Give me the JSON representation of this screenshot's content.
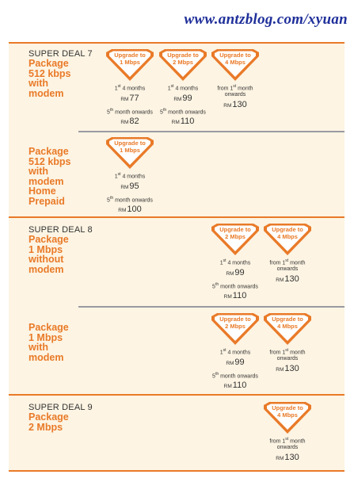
{
  "watermark": "www.antzblog.com/xyuan",
  "colors": {
    "accent": "#e97a28",
    "background": "#fdf4e3",
    "text": "#333333",
    "watermark": "#1f2f9a"
  },
  "icons": {
    "badge": "diamond-badge-icon"
  },
  "currency": "RM",
  "sections": [
    {
      "deal": "SUPER DEAL 7",
      "package_lines": [
        "Package",
        "512 kbps",
        "with",
        "modem"
      ],
      "offers": [
        {
          "badge_lines": [
            "Upgrade to",
            "1 Mbps"
          ],
          "first_label": "1st 4 months",
          "first_price": "77",
          "then_label": "5th month onwards",
          "then_price": "82"
        },
        {
          "badge_lines": [
            "Upgrade to",
            "2 Mbps"
          ],
          "first_label": "1st 4 months",
          "first_price": "99",
          "then_label": "5th month onwards",
          "then_price": "110"
        },
        {
          "badge_lines": [
            "Upgrade to",
            "4 Mbps"
          ],
          "first_label": "from 1st month onwards",
          "first_price": "130"
        }
      ]
    },
    {
      "deal": "",
      "package_lines": [
        "Package",
        "512 kbps",
        "with",
        "modem",
        "Home",
        "Prepaid"
      ],
      "offers": [
        {
          "badge_lines": [
            "Upgrade to",
            "1 Mbps"
          ],
          "first_label": "1st 4 months",
          "first_price": "95",
          "then_label": "5th month onwards",
          "then_price": "100"
        }
      ]
    },
    {
      "deal": "SUPER DEAL 8",
      "package_lines": [
        "Package",
        "1 Mbps",
        "without",
        "modem"
      ],
      "offers": [
        {
          "badge_lines": [
            "Upgrade to",
            "2 Mbps"
          ],
          "first_label": "1st 4 months",
          "first_price": "99",
          "then_label": "5th month onwards",
          "then_price": "110"
        },
        {
          "badge_lines": [
            "Upgrade to",
            "4 Mbps"
          ],
          "first_label": "from 1st month onwards",
          "first_price": "130"
        }
      ]
    },
    {
      "deal": "",
      "package_lines": [
        "Package",
        "1 Mbps",
        "with",
        "modem"
      ],
      "offers": [
        {
          "badge_lines": [
            "Upgrade to",
            "2 Mbps"
          ],
          "first_label": "1st 4 months",
          "first_price": "99",
          "then_label": "5th month onwards",
          "then_price": "110"
        },
        {
          "badge_lines": [
            "Upgrade to",
            "4 Mbps"
          ],
          "first_label": "from 1st month onwards",
          "first_price": "130"
        }
      ]
    },
    {
      "deal": "SUPER DEAL 9",
      "package_lines": [
        "Package",
        "2 Mbps"
      ],
      "offers": [
        {
          "badge_lines": [
            "Upgrade to",
            "4 Mbps"
          ],
          "first_label": "from 1st month onwards",
          "first_price": "130"
        }
      ]
    }
  ]
}
